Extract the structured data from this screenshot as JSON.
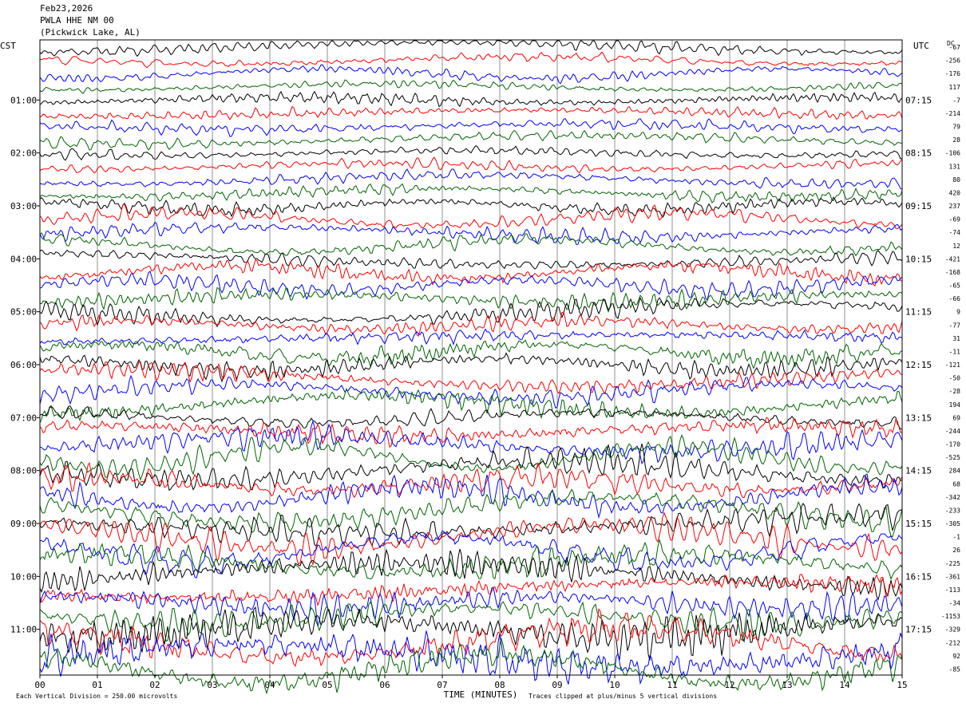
{
  "header": {
    "date": "Feb23,2026",
    "station": "PWLA HHE NM 00",
    "location": "(Pickwick Lake, AL)"
  },
  "chart_data": {
    "type": "line",
    "title": "",
    "left_axis_label": "CST",
    "right_axis_label": "UTC",
    "dc_label": "DC",
    "x_label": "TIME (MINUTES)",
    "x_range": [
      0,
      15
    ],
    "x_ticks": [
      "00",
      "01",
      "02",
      "03",
      "04",
      "05",
      "06",
      "07",
      "08",
      "09",
      "10",
      "11",
      "12",
      "13",
      "14",
      "15"
    ],
    "left_hour_labels": [
      "01:00",
      "02:00",
      "03:00",
      "04:00",
      "05:00",
      "06:00",
      "07:00",
      "08:00",
      "09:00",
      "10:00",
      "11:00"
    ],
    "right_hour_labels": [
      "07:15",
      "08:15",
      "09:15",
      "10:15",
      "11:15",
      "12:15",
      "13:15",
      "14:15",
      "15:15",
      "16:15",
      "17:15"
    ],
    "trace_colors": [
      "#000000",
      "#ff0000",
      "#0000ff",
      "#006400"
    ],
    "dc_offsets": [
      -67,
      -256,
      -176,
      117,
      -7,
      -214,
      79,
      28,
      -106,
      131,
      80,
      420,
      237,
      -69,
      -74,
      12,
      -421,
      -168,
      -65,
      -66,
      9,
      -77,
      31,
      -11,
      -121,
      -50,
      -28,
      194,
      69,
      -244,
      -170,
      -525,
      284,
      68,
      -342,
      -233,
      -305,
      -1,
      26,
      -225,
      -361,
      -113,
      -34,
      -1153,
      -329,
      -212,
      92,
      -85
    ],
    "footer_left": "Each Vertical Division =  250.00 microvolts",
    "footer_right": "Traces clipped at plus/minus 5 vertical divisions"
  }
}
